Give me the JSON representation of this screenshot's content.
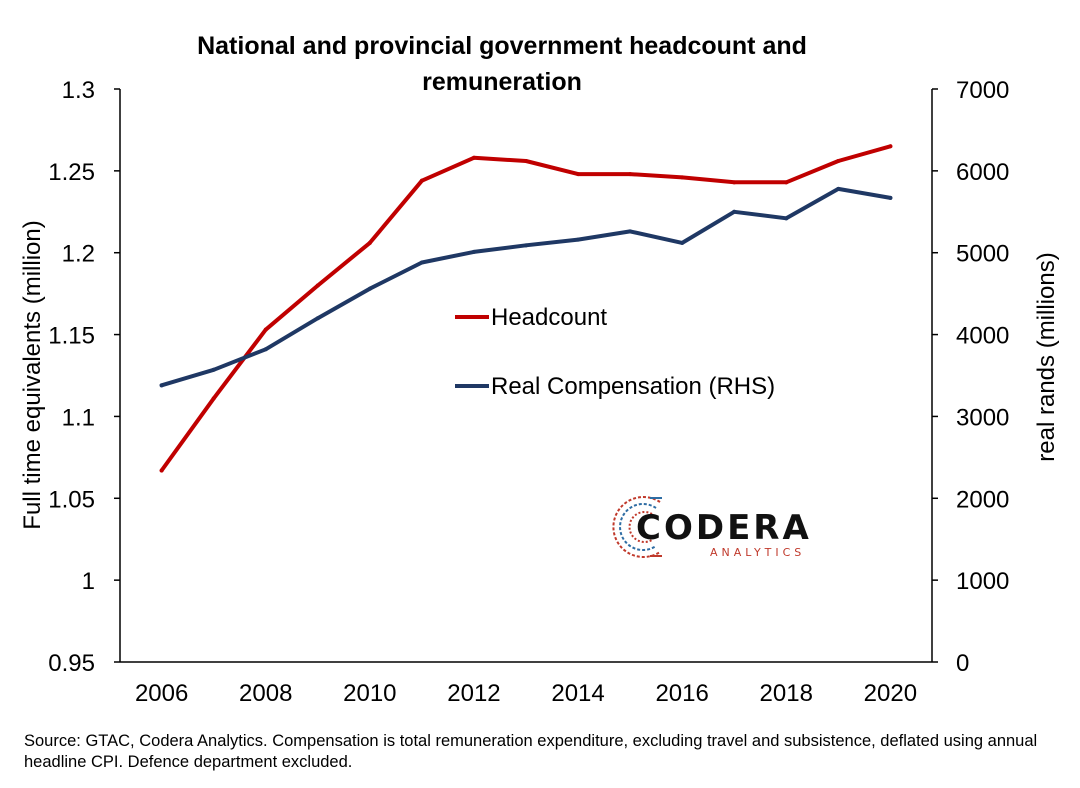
{
  "chart_data": {
    "type": "line",
    "title_line1": "National and provincial government headcount and",
    "title_line2": "remuneration",
    "ylabel_left": "Full time equivalents (million)",
    "ylabel_right": "real rands (millions)",
    "x": [
      2006,
      2007,
      2008,
      2009,
      2010,
      2011,
      2012,
      2013,
      2014,
      2015,
      2016,
      2017,
      2018,
      2019,
      2020
    ],
    "x_tick_labels": [
      "2006",
      "2008",
      "2010",
      "2012",
      "2014",
      "2016",
      "2018",
      "2020"
    ],
    "y_left_tick_labels": [
      "0.95",
      "1",
      "1.05",
      "1.1",
      "1.15",
      "1.2",
      "1.25",
      "1.3"
    ],
    "y_right_tick_labels": [
      "0",
      "1000",
      "2000",
      "3000",
      "4000",
      "5000",
      "6000",
      "7000"
    ],
    "ylim_left": [
      0.95,
      1.3
    ],
    "ylim_right": [
      0,
      7000
    ],
    "xlim": [
      2005.2,
      2020.8
    ],
    "grid": false,
    "legend_placement": "center",
    "series": [
      {
        "name": "Headcount",
        "axis": "left",
        "color": "#c00000",
        "values": [
          1.067,
          1.111,
          1.153,
          1.18,
          1.206,
          1.244,
          1.258,
          1.256,
          1.248,
          1.248,
          1.246,
          1.243,
          1.243,
          1.256,
          1.265
        ]
      },
      {
        "name": "Real Compensation (RHS)",
        "axis": "right",
        "color": "#1f3864",
        "values": [
          3380,
          3570,
          3820,
          4200,
          4560,
          4880,
          5010,
          5090,
          5160,
          5260,
          5120,
          5500,
          5420,
          5780,
          5670
        ]
      }
    ]
  },
  "logo": {
    "main": "CODERA",
    "sub": "ANALYTICS"
  },
  "source_note": "Source: GTAC, Codera Analytics. Compensation is total remuneration expenditure, excluding travel and subsistence, deflated using annual headline CPI. Defence department excluded."
}
